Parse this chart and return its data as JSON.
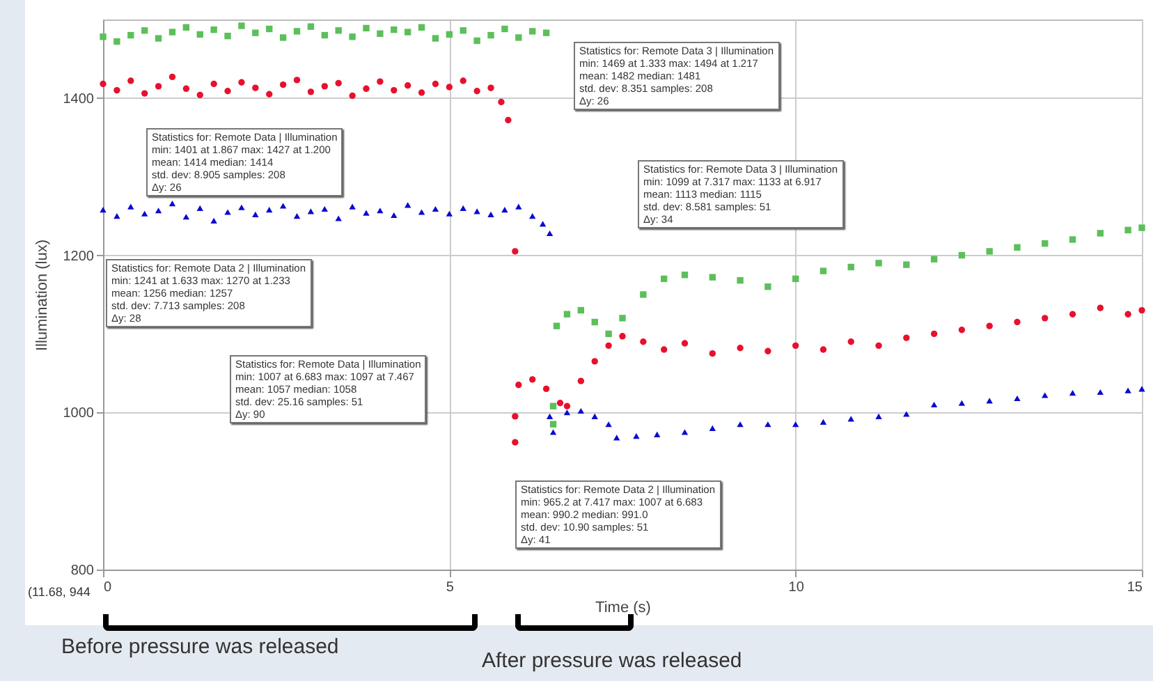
{
  "chart_data": {
    "type": "scatter",
    "xlabel": "Time (s)",
    "ylabel": "Illumination (lux)",
    "xlim": [
      0,
      15
    ],
    "ylim": [
      800,
      1500
    ],
    "xticks": [
      0,
      5,
      10,
      15
    ],
    "yticks": [
      800,
      1000,
      1200,
      1400
    ],
    "grid": true,
    "series": [
      {
        "color": "#5cbf5a",
        "marker": "square",
        "x": [
          0,
          0.2,
          0.4,
          0.6,
          0.8,
          1,
          1.2,
          1.4,
          1.6,
          1.8,
          2,
          2.2,
          2.4,
          2.6,
          2.8,
          3,
          3.2,
          3.4,
          3.6,
          3.8,
          4,
          4.2,
          4.4,
          4.6,
          4.8,
          5,
          5.2,
          5.4,
          5.6,
          5.8,
          6,
          6.2,
          6.4,
          6.5,
          6.5,
          6.55,
          6.7,
          6.9,
          7.1,
          7.3,
          7.5,
          7.8,
          8.1,
          8.4,
          8.8,
          9.2,
          9.6,
          10,
          10.4,
          10.8,
          11.2,
          11.6,
          12,
          12.4,
          12.8,
          13.2,
          13.6,
          14,
          14.4,
          14.8,
          15
        ],
        "values": [
          1478,
          1472,
          1480,
          1486,
          1476,
          1484,
          1490,
          1481,
          1487,
          1479,
          1492,
          1483,
          1488,
          1477,
          1485,
          1491,
          1480,
          1486,
          1478,
          1489,
          1482,
          1487,
          1484,
          1490,
          1476,
          1481,
          1486,
          1473,
          1480,
          1488,
          1477,
          1485,
          1483,
          1008,
          985,
          1110,
          1125,
          1130,
          1115,
          1100,
          1120,
          1150,
          1170,
          1175,
          1172,
          1168,
          1160,
          1170,
          1180,
          1185,
          1190,
          1188,
          1195,
          1200,
          1205,
          1210,
          1215,
          1220,
          1228,
          1232,
          1235
        ]
      },
      {
        "color": "#e8102e",
        "marker": "circle",
        "x": [
          0,
          0.2,
          0.4,
          0.6,
          0.8,
          1,
          1.2,
          1.4,
          1.6,
          1.8,
          2,
          2.2,
          2.4,
          2.6,
          2.8,
          3,
          3.2,
          3.4,
          3.6,
          3.8,
          4,
          4.2,
          4.4,
          4.6,
          4.8,
          5,
          5.2,
          5.4,
          5.6,
          5.75,
          5.85,
          5.95,
          5.95,
          5.95,
          6,
          6.2,
          6.4,
          6.6,
          6.7,
          6.9,
          7.1,
          7.3,
          7.5,
          7.8,
          8.1,
          8.4,
          8.8,
          9.2,
          9.6,
          10,
          10.4,
          10.8,
          11.2,
          11.6,
          12,
          12.4,
          12.8,
          13.2,
          13.6,
          14,
          14.4,
          14.8,
          15
        ],
        "values": [
          1418,
          1410,
          1422,
          1406,
          1415,
          1427,
          1412,
          1404,
          1418,
          1409,
          1420,
          1413,
          1405,
          1417,
          1423,
          1408,
          1415,
          1419,
          1403,
          1412,
          1421,
          1410,
          1416,
          1407,
          1418,
          1414,
          1422,
          1409,
          1413,
          1395,
          1372,
          1205,
          995,
          962,
          1035,
          1042,
          1030,
          1012,
          1008,
          1040,
          1065,
          1085,
          1097,
          1090,
          1080,
          1088,
          1075,
          1082,
          1078,
          1085,
          1080,
          1090,
          1085,
          1095,
          1100,
          1105,
          1110,
          1115,
          1120,
          1125,
          1133,
          1125,
          1130
        ]
      },
      {
        "color": "#0a0ad0",
        "marker": "triangle",
        "x": [
          0,
          0.2,
          0.4,
          0.6,
          0.8,
          1,
          1.2,
          1.4,
          1.6,
          1.8,
          2,
          2.2,
          2.4,
          2.6,
          2.8,
          3,
          3.2,
          3.4,
          3.6,
          3.8,
          4,
          4.2,
          4.4,
          4.6,
          4.8,
          5,
          5.2,
          5.4,
          5.6,
          5.8,
          6,
          6.2,
          6.35,
          6.45,
          6.45,
          6.5,
          6.7,
          6.9,
          7.1,
          7.3,
          7.417,
          7.7,
          8,
          8.4,
          8.8,
          9.2,
          9.6,
          10,
          10.4,
          10.8,
          11.2,
          11.6,
          12,
          12.4,
          12.8,
          13.2,
          13.6,
          14,
          14.4,
          14.8,
          15
        ],
        "values": [
          1258,
          1250,
          1262,
          1253,
          1257,
          1266,
          1249,
          1260,
          1244,
          1255,
          1261,
          1252,
          1258,
          1263,
          1250,
          1256,
          1259,
          1247,
          1262,
          1254,
          1257,
          1251,
          1264,
          1255,
          1259,
          1253,
          1260,
          1256,
          1252,
          1258,
          1262,
          1250,
          1240,
          1228,
          995,
          975,
          1000,
          1002,
          995,
          985,
          968,
          970,
          972,
          975,
          980,
          985,
          985,
          985,
          988,
          992,
          995,
          998,
          1010,
          1012,
          1015,
          1018,
          1022,
          1025,
          1026,
          1028,
          1030
        ]
      }
    ],
    "annotations": [
      "Statistics for: Remote Data 3 | Illumination\nmin: 1469 at 1.333 max: 1494 at 1.217\nmean: 1482 median: 1481\nstd. dev: 8.351 samples: 208\nΔy: 26",
      "Statistics for: Remote Data | Illumination\nmin: 1401 at 1.867 max: 1427 at 1.200\nmean: 1414 median: 1414\nstd. dev: 8.905 samples: 208\nΔy: 26",
      "Statistics for: Remote Data 2 | Illumination\nmin: 1241 at 1.633 max: 1270 at 1.233\nmean: 1256 median: 1257\nstd. dev: 7.713 samples: 208\nΔy: 28",
      "Statistics for: Remote Data 3 | Illumination\nmin: 1099 at 7.317 max: 1133 at 6.917\nmean: 1113 median: 1115\nstd. dev: 8.581 samples: 51\nΔy: 34",
      "Statistics for: Remote Data | Illumination\nmin: 1007 at 6.683 max: 1097 at 7.467\nmean: 1057 median: 1058\nstd. dev: 25.16 samples: 51\nΔy: 90",
      "Statistics for: Remote Data 2 | Illumination\nmin: 965.2 at 7.417 max: 1007 at 6.683\nmean: 990.2 median: 991.0\nstd. dev: 10.90 samples: 51\nΔy: 41",
      "(11.68, 944",
      "Before pressure was released",
      "After pressure was released"
    ]
  }
}
